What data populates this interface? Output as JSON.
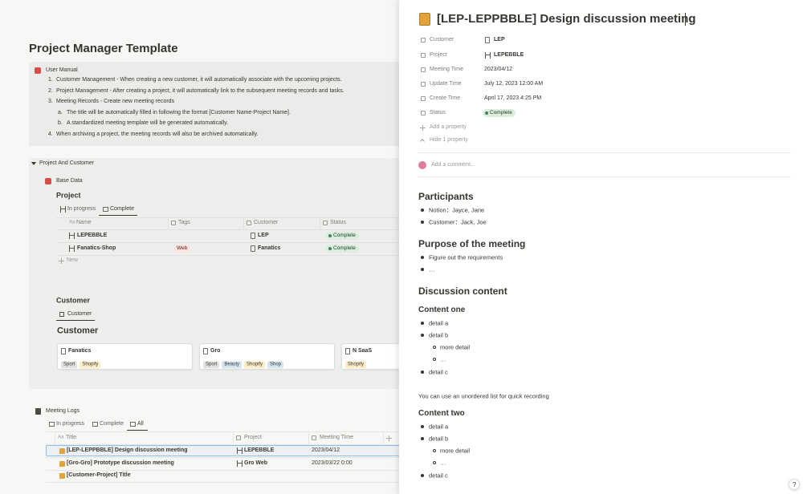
{
  "left": {
    "title": "Project Manager Template",
    "manual": {
      "title": "User Manual",
      "items": [
        {
          "marker": "1.",
          "text": "Customer Management - When creating a new customer, it will automatically associate with the upcoming projects."
        },
        {
          "marker": "2.",
          "text": "Project Management - After creating a project, it will automatically link to the subsequent meeting records and tasks."
        },
        {
          "marker": "3.",
          "text": "Meeting Records - Create new meeting records",
          "sub": [
            {
              "marker": "a.",
              "text": "The title will be automatically filled in following the format [Customer Name-Project Name]."
            },
            {
              "marker": "b.",
              "text": "A standardized meeting template will be generated automatically."
            }
          ]
        },
        {
          "marker": "4.",
          "text": "When archiving a project, the meeting records will also be archived automatically."
        }
      ]
    },
    "toggle": "Project And Customer",
    "base": "Base Data",
    "project": {
      "heading": "Project",
      "tabs": [
        "In progress",
        "Complete"
      ],
      "title_icon": "Aa",
      "columns": [
        "Name",
        "Tags",
        "Customer",
        "Status"
      ],
      "rows": [
        [
          "LEPEBBLE",
          null,
          "LEP",
          "Complete"
        ],
        [
          "Fanatics-Shop",
          {
            "text": "Web",
            "color": "#ffe2dd"
          },
          "Fanatics",
          "Complete"
        ]
      ],
      "new": "New"
    },
    "customer": {
      "heading": "Customer",
      "tab": "Customer",
      "gallery_title": "Customer",
      "cards": [
        {
          "title": "Fanatics",
          "tags": [
            {
              "text": "Sport",
              "color": "#e3e2e0"
            },
            {
              "text": "Shopify",
              "color": "#fdecc8"
            }
          ]
        },
        {
          "title": "Gro",
          "tags": [
            {
              "text": "Sport",
              "color": "#e3e2e0"
            },
            {
              "text": "Beauty",
              "color": "#d3e5ef"
            },
            {
              "text": "Shopify",
              "color": "#fdecc8"
            },
            {
              "text": "Shop",
              "color": "#d3e5ef"
            }
          ]
        },
        {
          "title": "N SaaS",
          "tags": [
            {
              "text": "Shopify",
              "color": "#fdecc8"
            }
          ]
        }
      ]
    },
    "logs": {
      "title": "Meeting Logs",
      "tabs": [
        "In progress",
        "Complete",
        "All"
      ],
      "title_icon": "Aa",
      "columns": [
        "Title",
        "Project",
        "Meeting Time"
      ],
      "rows": [
        [
          "[LEP-LEPPBBLE] Design discussion meeting",
          "LEPEBBLE",
          "2023/04/12"
        ],
        [
          "[Gro-Gro] Prototype discussion meeting",
          "Gro Web",
          "2023/03/22 0:00"
        ],
        [
          "[Customer-Project] Title",
          null,
          null
        ]
      ]
    }
  },
  "panel": {
    "title": "[LEP-LEPPBBLE] Design discussion meeting",
    "properties": [
      {
        "name": "Customer",
        "value": "LEP"
      },
      {
        "name": "Project",
        "value": "LEPEBBLE"
      },
      {
        "name": "Meeting Time",
        "value": "2023/04/12"
      },
      {
        "name": "Update Time",
        "value": "July 12, 2023 12:00 AM"
      },
      {
        "name": "Create Time",
        "value": "April 17, 2023 4:25 PM"
      },
      {
        "name": "Status",
        "value": "Complete"
      }
    ],
    "add_property": "Add a property",
    "hide_property": "Hide 1 property",
    "comment": "Add a comment...",
    "body": [
      {
        "type": "h2",
        "text": "Participants"
      },
      {
        "type": "li",
        "text": "Notion：Jayce, Jane"
      },
      {
        "type": "li",
        "text": "Customer：Jack, Joe"
      },
      {
        "type": "h2",
        "text": "Purpose of the meeting"
      },
      {
        "type": "li",
        "text": "Figure out the requirements"
      },
      {
        "type": "li",
        "text": "…"
      },
      {
        "type": "h2",
        "text": "Discussion content"
      },
      {
        "type": "h3",
        "text": "Content one"
      },
      {
        "type": "li",
        "text": "detail a"
      },
      {
        "type": "li",
        "text": "detail b"
      },
      {
        "type": "li2",
        "text": "more detail"
      },
      {
        "type": "li2",
        "text": "…"
      },
      {
        "type": "li",
        "text": "detail c"
      },
      {
        "type": "p",
        "text": "You can use an unordered list for quick recording"
      },
      {
        "type": "h3",
        "text": "Content two"
      },
      {
        "type": "li",
        "text": "detail a"
      },
      {
        "type": "li",
        "text": "detail b"
      },
      {
        "type": "li2",
        "text": "more detail"
      },
      {
        "type": "li2",
        "text": "…"
      },
      {
        "type": "li",
        "text": "detail c"
      }
    ],
    "help": "?"
  }
}
